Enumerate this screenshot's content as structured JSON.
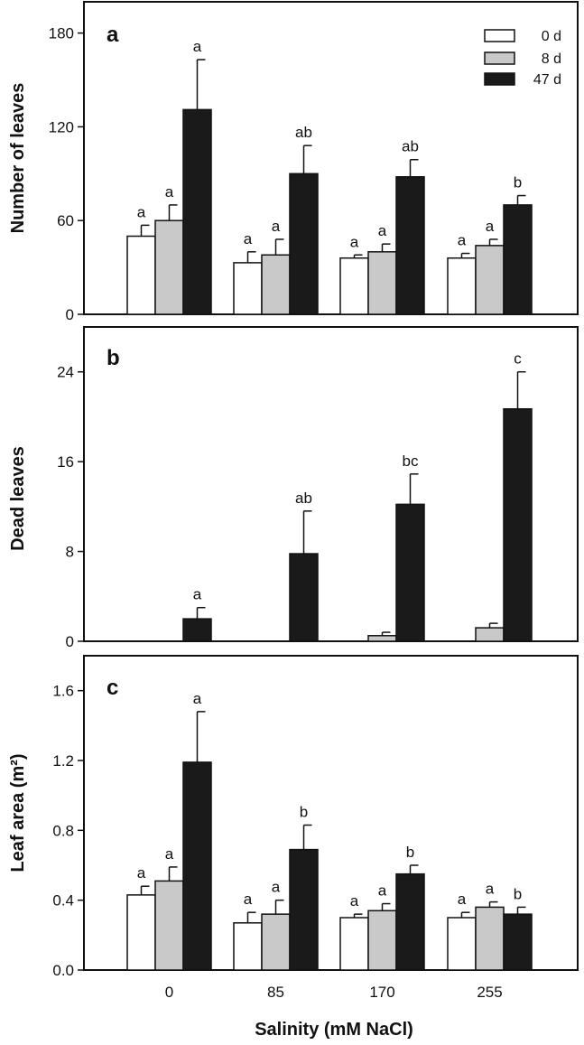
{
  "colors": {
    "0 d": "#ffffff",
    "8 d": "#c9c9c9",
    "47 d": "#1a1a1a",
    "axis": "#111111"
  },
  "chart_data": [
    {
      "type": "bar",
      "panel": "a",
      "ylabel": "Number of leaves",
      "ylim": [
        0,
        200
      ],
      "yticks": [
        0,
        60,
        120,
        180
      ],
      "categories": [
        "0",
        "85",
        "170",
        "255"
      ],
      "legend": {
        "placement": "top-right",
        "entries": [
          "0 d",
          "8 d",
          "47 d"
        ]
      },
      "series": [
        {
          "name": "0 d",
          "values": [
            50,
            33,
            36,
            36
          ],
          "errors": [
            7,
            7,
            2,
            3
          ],
          "labels": [
            "a",
            "a",
            "a",
            "a"
          ]
        },
        {
          "name": "8 d",
          "values": [
            60,
            38,
            40,
            44
          ],
          "errors": [
            10,
            10,
            5,
            4
          ],
          "labels": [
            "a",
            "a",
            "a",
            "a"
          ]
        },
        {
          "name": "47 d",
          "values": [
            131,
            90,
            88,
            70
          ],
          "errors": [
            32,
            18,
            11,
            6
          ],
          "labels": [
            "a",
            "ab",
            "ab",
            "b"
          ]
        }
      ]
    },
    {
      "type": "bar",
      "panel": "b",
      "ylabel": "Dead leaves",
      "ylim": [
        0,
        28
      ],
      "yticks": [
        0,
        8,
        16,
        24
      ],
      "categories": [
        "0",
        "85",
        "170",
        "255"
      ],
      "series": [
        {
          "name": "0 d",
          "values": [
            0,
            0,
            0,
            0
          ],
          "errors": [
            0,
            0,
            0,
            0
          ],
          "labels": [
            "",
            "",
            "",
            ""
          ]
        },
        {
          "name": "8 d",
          "values": [
            0,
            0,
            0.5,
            1.2
          ],
          "errors": [
            0,
            0,
            0.3,
            0.4
          ],
          "labels": [
            "",
            "",
            "",
            ""
          ]
        },
        {
          "name": "47 d",
          "values": [
            2,
            7.8,
            12.2,
            20.7
          ],
          "errors": [
            1,
            3.8,
            2.7,
            3.3
          ],
          "labels": [
            "a",
            "ab",
            "bc",
            "c"
          ]
        }
      ]
    },
    {
      "type": "bar",
      "panel": "c",
      "ylabel": "Leaf area (m²)",
      "ylim": [
        0,
        1.8
      ],
      "yticks": [
        "0.0",
        "0.4",
        "0.8",
        "1.2",
        "1.6"
      ],
      "categories": [
        "0",
        "85",
        "170",
        "255"
      ],
      "xlabel": "Salinity (mM NaCl)",
      "series": [
        {
          "name": "0 d",
          "values": [
            0.43,
            0.27,
            0.3,
            0.3
          ],
          "errors": [
            0.05,
            0.06,
            0.02,
            0.03
          ],
          "labels": [
            "a",
            "a",
            "a",
            "a"
          ]
        },
        {
          "name": "8 d",
          "values": [
            0.51,
            0.32,
            0.34,
            0.36
          ],
          "errors": [
            0.08,
            0.08,
            0.04,
            0.03
          ],
          "labels": [
            "a",
            "a",
            "a",
            "a"
          ]
        },
        {
          "name": "47 d",
          "values": [
            1.19,
            0.69,
            0.55,
            0.32
          ],
          "errors": [
            0.29,
            0.14,
            0.05,
            0.04
          ],
          "labels": [
            "a",
            "b",
            "b",
            "b"
          ]
        }
      ]
    }
  ]
}
